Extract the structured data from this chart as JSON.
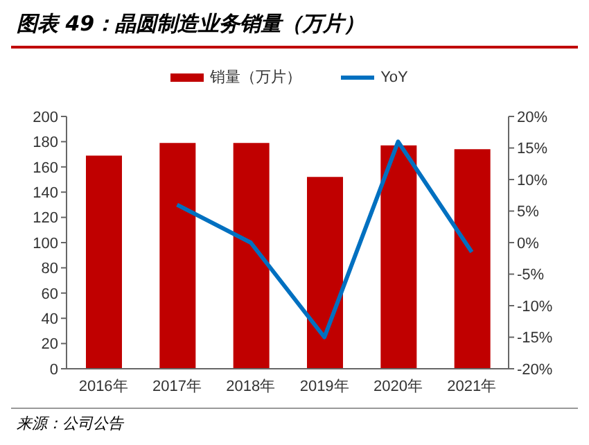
{
  "chart_data": {
    "type": "bar",
    "title": "图表 49：晶圆制造业务销量（万片）",
    "categories": [
      "2016年",
      "2017年",
      "2018年",
      "2019年",
      "2020年",
      "2021年"
    ],
    "series": [
      {
        "name": "销量（万片）",
        "color": "#c00000",
        "values": [
          169,
          179,
          179,
          152,
          177,
          174
        ]
      },
      {
        "name": "YoY",
        "type": "line",
        "axis": "y2",
        "color": "#0070c0",
        "values": [
          null,
          6,
          0,
          -15,
          16,
          -1.5
        ]
      }
    ],
    "ylim": [
      0,
      200
    ],
    "yticks": [
      0,
      20,
      40,
      60,
      80,
      100,
      120,
      140,
      160,
      180,
      200
    ],
    "y2lim": [
      -20,
      20
    ],
    "y2ticks": [
      {
        "value": -20,
        "label": "-20%"
      },
      {
        "value": -15,
        "label": "-15%"
      },
      {
        "value": -10,
        "label": "-10%"
      },
      {
        "value": -5,
        "label": "-5%"
      },
      {
        "value": 0,
        "label": "0%"
      },
      {
        "value": 5,
        "label": "5%"
      },
      {
        "value": 10,
        "label": "10%"
      },
      {
        "value": 15,
        "label": "15%"
      },
      {
        "value": 20,
        "label": "20%"
      }
    ],
    "legend": "top",
    "grid": false,
    "marker": "none",
    "annotations": [
      "来源：公司公告"
    ]
  }
}
